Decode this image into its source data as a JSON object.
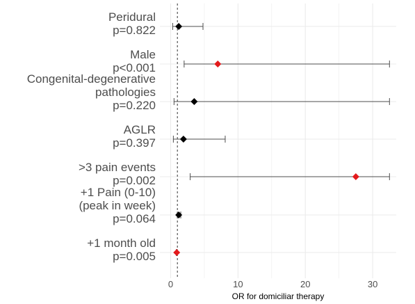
{
  "chart_data": {
    "type": "scatter",
    "subtype": "forest-plot",
    "title": "",
    "xlabel": "OR for domiciliar therapy",
    "ylabel": "",
    "xlim": [
      -1.6,
      33.5
    ],
    "xticks": [
      0,
      10,
      20,
      30
    ],
    "reference_line": 1,
    "grid": true,
    "rows": [
      {
        "label_lines": [
          "Peridural",
          "p=0.822"
        ],
        "or": 1.2,
        "ci_low": 0.3,
        "ci_high": 4.8,
        "significant": false
      },
      {
        "label_lines": [
          "Male",
          "p<0.001"
        ],
        "or": 7.0,
        "ci_low": 2.0,
        "ci_high": 32.5,
        "significant": true
      },
      {
        "label_lines": [
          "Congenital-degenerative",
          "pathologies",
          "p=0.220"
        ],
        "or": 3.5,
        "ci_low": 0.5,
        "ci_high": 32.5,
        "significant": false
      },
      {
        "label_lines": [
          "AGLR",
          "p=0.397"
        ],
        "or": 1.9,
        "ci_low": 0.4,
        "ci_high": 8.1,
        "significant": false
      },
      {
        "label_lines": [
          ">3 pain events",
          "p=0.002"
        ],
        "or": 27.5,
        "ci_low": 2.9,
        "ci_high": 32.5,
        "significant": true
      },
      {
        "label_lines": [
          "+1 Pain (0-10)",
          "(peak in week)",
          "p=0.064"
        ],
        "or": 1.2,
        "ci_low": 1.0,
        "ci_high": 1.5,
        "significant": false
      },
      {
        "label_lines": [
          "+1 month old",
          "p=0.005"
        ],
        "or": 0.9,
        "ci_low": 0.85,
        "ci_high": 0.97,
        "significant": true
      }
    ],
    "colors": {
      "significant": "#e31a1c",
      "not_significant": "#000000",
      "whisker": "#4d4d4d",
      "grid": "#ebebeb"
    }
  }
}
